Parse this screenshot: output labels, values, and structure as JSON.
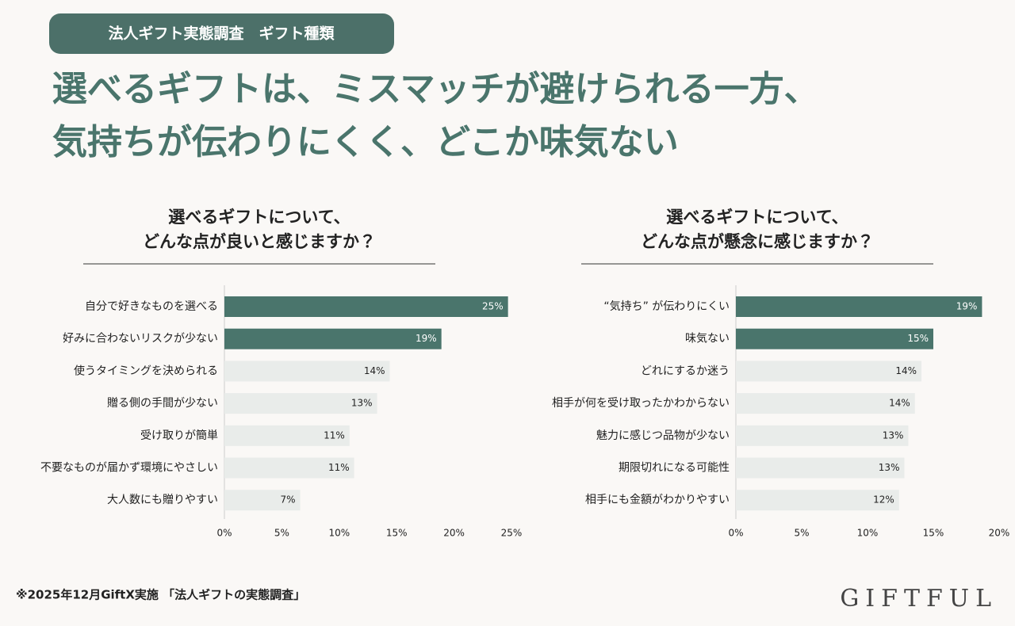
{
  "header": {
    "tag": "法人ギフト実態調査　ギフト種類",
    "title": [
      "選べるギフトは、ミスマッチが避けられる一方、",
      "気持ちが伝わりにくく、どこか味気ない"
    ]
  },
  "chart_data": [
    {
      "type": "barh",
      "title": [
        "選べるギフトについて、",
        "どんな点が良いと感じますか？"
      ],
      "categories": [
        "自分で好きなものを選べる",
        "好みに合わないリスクが少ない",
        "使うタイミングを決められる",
        "贈る側の手間が少ない",
        "受け取りが簡単",
        "不要なものが届かず環境にやさしい",
        "大人数にも贈りやすい"
      ],
      "values": [
        24.7,
        18.9,
        14.4,
        13.3,
        10.9,
        11.3,
        6.6
      ],
      "value_labels": [
        "25%",
        "19%",
        "14%",
        "13%",
        "11%",
        "11%",
        "7%"
      ],
      "colors": [
        "#4a756c",
        "#4a756c",
        "#e9ecea",
        "#e9ecea",
        "#e9ecea",
        "#e9ecea",
        "#e9ecea"
      ],
      "xlim": [
        0,
        25
      ],
      "xticks": [
        {
          "value": 0,
          "label": "0%"
        },
        {
          "value": 5,
          "label": "5%"
        },
        {
          "value": 10,
          "label": "10%"
        },
        {
          "value": 15,
          "label": "15%"
        },
        {
          "value": 20,
          "label": "20%"
        },
        {
          "value": 25,
          "label": "25%"
        }
      ],
      "grid": false
    },
    {
      "type": "barh",
      "title": [
        "選べるギフトについて、",
        "どんな点が懸念に感じますか？"
      ],
      "categories": [
        "“気持ち” が伝わりにくい",
        "味気ない",
        "どれにするか迷う",
        "相手が何を受け取ったかわからない",
        "魅力に感じつ品物が少ない",
        "期限切れになる可能性",
        "相手にも金額がわかりやすい"
      ],
      "values": [
        18.7,
        15.0,
        14.1,
        13.6,
        13.1,
        12.8,
        12.4
      ],
      "value_labels": [
        "19%",
        "15%",
        "14%",
        "14%",
        "13%",
        "13%",
        "12%"
      ],
      "colors": [
        "#4a756c",
        "#4a756c",
        "#e9ecea",
        "#e9ecea",
        "#e9ecea",
        "#e9ecea",
        "#e9ecea"
      ],
      "xlim": [
        0,
        20
      ],
      "xticks": [
        {
          "value": 0,
          "label": "0%"
        },
        {
          "value": 5,
          "label": "5%"
        },
        {
          "value": 10,
          "label": "10%"
        },
        {
          "value": 15,
          "label": "15%"
        },
        {
          "value": 20,
          "label": "20%"
        }
      ],
      "grid": false
    }
  ],
  "footnote": "※2025年12月GiftX実施 「法人ギフトの実態調査」",
  "logo": "GIFTFUL"
}
